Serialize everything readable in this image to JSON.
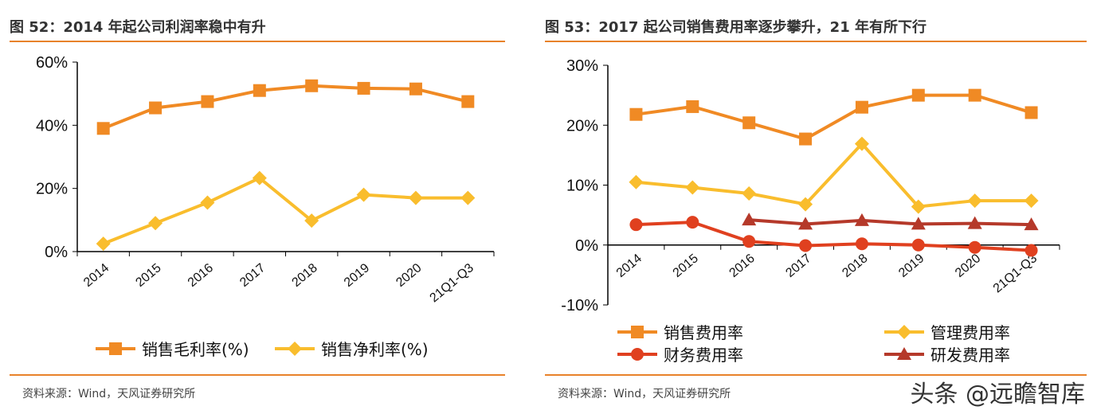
{
  "watermark": "头条 @远瞻智库",
  "colors": {
    "accent": "#e8822a",
    "sales": "#f08a24",
    "mgmt": "#f9bd2d",
    "fin": "#e0401f",
    "rd": "#b5392a"
  },
  "chart_data": [
    {
      "type": "line",
      "title": "图 52：2014 年起公司利润率稳中有升",
      "source": "资料来源：Wind，天风证券研究所",
      "categories": [
        "2014",
        "2015",
        "2016",
        "2017",
        "2018",
        "2019",
        "2020",
        "21Q1-Q3"
      ],
      "yticks": [
        "60%",
        "40%",
        "20%",
        "0%"
      ],
      "ylim": [
        0,
        60
      ],
      "legend": "bottom",
      "series": [
        {
          "name": "销售毛利率(%)",
          "marker": "square",
          "color": "#f08a24",
          "values": [
            39,
            45.5,
            47.5,
            51,
            52.5,
            51.7,
            51.5,
            47.5
          ]
        },
        {
          "name": "销售净利率(%)",
          "marker": "diamond",
          "color": "#f9bd2d",
          "values": [
            2.5,
            9,
            15.5,
            23.3,
            9.8,
            18,
            17,
            17
          ]
        }
      ]
    },
    {
      "type": "line",
      "title": "图 53：2017 起公司销售费用率逐步攀升，21 年有所下行",
      "source": "资料来源：Wind，天风证券研究所",
      "categories": [
        "2014",
        "2015",
        "2016",
        "2017",
        "2018",
        "2019",
        "2020",
        "21Q1-Q3"
      ],
      "yticks": [
        "30%",
        "20%",
        "10%",
        "0%",
        "-10%"
      ],
      "ylim": [
        -10,
        30
      ],
      "legend": "bottom",
      "series": [
        {
          "name": "销售费用率",
          "marker": "square",
          "color": "#f08a24",
          "values": [
            21.8,
            23.1,
            20.4,
            17.7,
            23,
            25,
            25,
            22.1
          ]
        },
        {
          "name": "管理费用率",
          "marker": "diamond",
          "color": "#f9bd2d",
          "values": [
            10.5,
            9.6,
            8.6,
            6.8,
            16.9,
            6.4,
            7.4,
            7.4
          ]
        },
        {
          "name": "财务费用率",
          "marker": "circle",
          "color": "#e0401f",
          "values": [
            3.4,
            3.8,
            0.6,
            -0.1,
            0.2,
            0,
            -0.4,
            -0.9
          ]
        },
        {
          "name": "研发费用率",
          "marker": "triangle",
          "color": "#b5392a",
          "values": [
            null,
            null,
            4.2,
            3.5,
            4.1,
            3.5,
            3.6,
            3.4
          ]
        }
      ]
    }
  ]
}
